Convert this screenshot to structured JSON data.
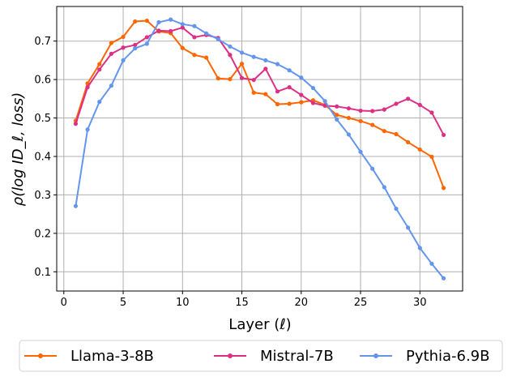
{
  "chart_data": {
    "type": "line",
    "title": "",
    "xlabel": "Layer (ℓ)",
    "ylabel": "ρ(log ID_ℓ, loss)",
    "xlim": [
      -0.6,
      33.6
    ],
    "ylim": [
      0.05,
      0.79
    ],
    "xticks": [
      0,
      5,
      10,
      15,
      20,
      25,
      30
    ],
    "yticks": [
      0.1,
      0.2,
      0.3,
      0.4,
      0.5,
      0.6,
      0.7
    ],
    "grid": true,
    "legend_position": "bottom-center-outside",
    "x": [
      1,
      2,
      3,
      4,
      5,
      6,
      7,
      8,
      9,
      10,
      11,
      12,
      13,
      14,
      15,
      16,
      17,
      18,
      19,
      20,
      21,
      22,
      23,
      24,
      25,
      26,
      27,
      28,
      29,
      30,
      31,
      32
    ],
    "series": [
      {
        "name": "Llama-3-8B",
        "color": "#ff6600",
        "values": [
          0.493,
          0.59,
          0.64,
          0.695,
          0.711,
          0.751,
          0.753,
          0.725,
          0.721,
          0.682,
          0.664,
          0.657,
          0.603,
          0.601,
          0.641,
          0.566,
          0.562,
          0.536,
          0.537,
          0.541,
          0.546,
          0.534,
          0.508,
          0.5,
          0.492,
          0.482,
          0.466,
          0.458,
          0.437,
          0.418,
          0.399,
          0.318
        ]
      },
      {
        "name": "Mistral-7B",
        "color": "#dd2f84",
        "values": [
          0.485,
          0.58,
          0.626,
          0.667,
          0.683,
          0.69,
          0.71,
          0.727,
          0.726,
          0.735,
          0.71,
          0.716,
          0.708,
          0.664,
          0.604,
          0.599,
          0.628,
          0.569,
          0.58,
          0.56,
          0.539,
          0.532,
          0.53,
          0.525,
          0.519,
          0.518,
          0.522,
          0.537,
          0.55,
          0.534,
          0.514,
          0.456
        ]
      },
      {
        "name": "Pythia-6.9B",
        "color": "#6495ed",
        "values": [
          0.271,
          0.47,
          0.542,
          0.584,
          0.65,
          0.681,
          0.693,
          0.749,
          0.756,
          0.744,
          0.739,
          0.72,
          0.705,
          0.686,
          0.67,
          0.659,
          0.65,
          0.64,
          0.624,
          0.605,
          0.578,
          0.544,
          0.496,
          0.457,
          0.412,
          0.368,
          0.32,
          0.264,
          0.215,
          0.162,
          0.121,
          0.083
        ]
      }
    ]
  }
}
